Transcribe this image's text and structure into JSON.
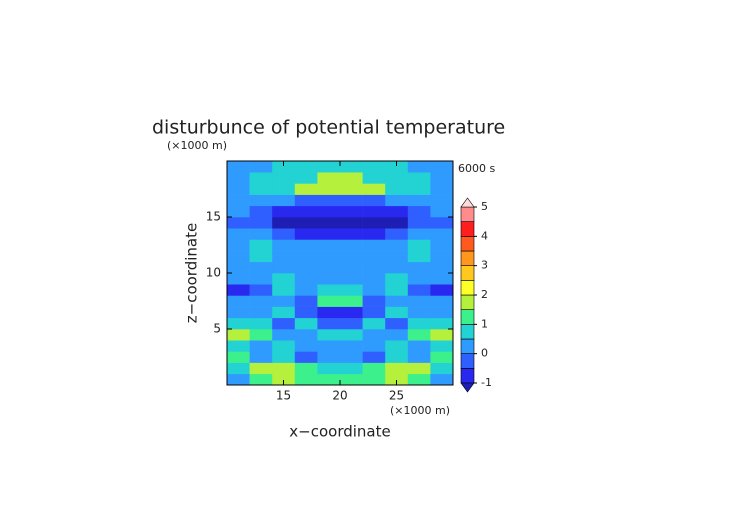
{
  "chart_data": {
    "type": "contour",
    "title": "disturbunce of potential temperature",
    "x_label": "x−coordinate",
    "y_label": "z−coordinate",
    "x_unit": "(×1000 m)",
    "y_unit": "(×1000 m)",
    "time_label": "6000 s",
    "xlim": [
      10,
      30
    ],
    "ylim": [
      0,
      20
    ],
    "xticks": [
      15,
      20,
      25
    ],
    "yticks": [
      5,
      10,
      15
    ],
    "x": [
      11,
      13,
      15,
      17,
      19,
      21,
      23,
      25,
      27,
      29
    ],
    "y": [
      0.5,
      1.5,
      2.5,
      3.5,
      4.5,
      5.5,
      6.5,
      7.5,
      8.5,
      9.5,
      10.5,
      11.5,
      12.5,
      13.5,
      14.5,
      15.5,
      16.5,
      17.5,
      18.5,
      19.5
    ],
    "z": [
      [
        0.2,
        1.2,
        1.7,
        1.2,
        1.2,
        1.2,
        1.2,
        1.7,
        1.2,
        0.2
      ],
      [
        0.7,
        1.7,
        1.7,
        1.2,
        0.7,
        0.7,
        1.2,
        1.7,
        1.7,
        0.7
      ],
      [
        1.2,
        0.2,
        0.7,
        -0.3,
        0.2,
        0.2,
        -0.3,
        0.7,
        0.2,
        1.2
      ],
      [
        0.7,
        0.2,
        0.7,
        0.2,
        0.2,
        0.2,
        0.2,
        0.7,
        0.2,
        0.7
      ],
      [
        1.7,
        1.2,
        0.2,
        0.2,
        0.7,
        0.7,
        0.2,
        0.2,
        1.2,
        1.7
      ],
      [
        0.7,
        0.7,
        -0.3,
        0.7,
        -0.3,
        -0.3,
        0.7,
        -0.3,
        0.7,
        0.7
      ],
      [
        0.2,
        0.2,
        0.7,
        -0.3,
        -0.8,
        -0.8,
        -0.3,
        0.7,
        0.2,
        0.2
      ],
      [
        0.2,
        0.2,
        0.2,
        -0.3,
        1.2,
        1.2,
        -0.3,
        0.2,
        0.2,
        0.2
      ],
      [
        -0.7,
        -0.3,
        0.7,
        0.2,
        0.7,
        0.7,
        0.2,
        0.7,
        -0.3,
        -0.7
      ],
      [
        0.2,
        0.2,
        0.7,
        0.2,
        0.2,
        0.2,
        0.2,
        0.7,
        0.2,
        0.2
      ],
      [
        0.3,
        0.3,
        0.3,
        0.3,
        0.3,
        0.3,
        0.3,
        0.3,
        0.3,
        0.3
      ],
      [
        0.3,
        0.7,
        0.3,
        0.2,
        0.2,
        0.2,
        0.2,
        0.3,
        0.7,
        0.3
      ],
      [
        0.2,
        0.7,
        0.2,
        0.2,
        0.2,
        0.2,
        0.2,
        0.2,
        0.7,
        0.2
      ],
      [
        0.2,
        0.2,
        -0.3,
        -0.7,
        -0.7,
        -0.7,
        -0.7,
        -0.3,
        0.2,
        0.2
      ],
      [
        -0.3,
        -0.3,
        -1.2,
        -1.2,
        -1.2,
        -1.2,
        -1.2,
        -1.2,
        -0.3,
        -0.3
      ],
      [
        0.2,
        -0.3,
        -0.8,
        -0.8,
        -0.8,
        -0.8,
        -0.8,
        -0.8,
        -0.3,
        0.2
      ],
      [
        0.2,
        0.2,
        0.2,
        -0.3,
        -0.3,
        -0.3,
        -0.3,
        0.2,
        0.2,
        0.2
      ],
      [
        0.2,
        0.7,
        0.8,
        1.7,
        1.7,
        1.7,
        1.7,
        0.8,
        0.7,
        0.2
      ],
      [
        0.3,
        0.7,
        0.8,
        0.8,
        1.7,
        1.7,
        0.8,
        0.8,
        0.7,
        0.3
      ],
      [
        0.2,
        0.2,
        0.7,
        0.7,
        0.7,
        0.7,
        0.7,
        0.7,
        0.2,
        0.2
      ]
    ],
    "levels": [
      -1,
      -0.5,
      0,
      0.5,
      1,
      1.5,
      2,
      2.5,
      3,
      3.5,
      4,
      4.5,
      5
    ],
    "colors": [
      "#1e1eb4",
      "#2828f0",
      "#2f5fff",
      "#2f9bff",
      "#23d2d2",
      "#3cf08c",
      "#b4f03c",
      "#ffff28",
      "#ffc81e",
      "#ff961e",
      "#ff5a1e",
      "#ff1e1e",
      "#ff8c8c",
      "#ffdcdc"
    ],
    "colorbar_ticks": [
      -1,
      0,
      1,
      2,
      3,
      4,
      5
    ]
  }
}
